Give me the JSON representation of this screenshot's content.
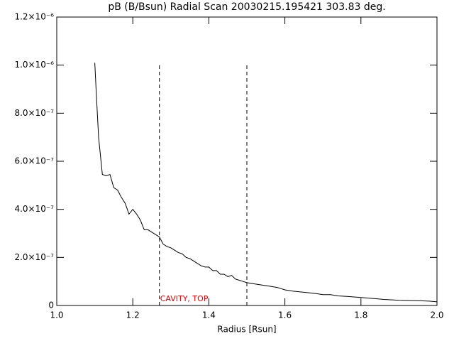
{
  "chart_data": {
    "type": "line",
    "title": "pB (B/Bsun) Radial Scan 20030215.195421 303.83 deg.",
    "xlabel": "Radius [Rsun]",
    "annotation": "CAVITY, TOP",
    "annotation_color": "#e00000",
    "markers": {
      "x": [
        1.27,
        1.5
      ],
      "top": 1e-06
    },
    "xlim": [
      1.0,
      2.0
    ],
    "ylim": [
      0,
      1.2e-06
    ],
    "xticks": [
      {
        "value": 1.0,
        "label": "1.0"
      },
      {
        "value": 1.2,
        "label": "1.2"
      },
      {
        "value": 1.4,
        "label": "1.4"
      },
      {
        "value": 1.6,
        "label": "1.6"
      },
      {
        "value": 1.8,
        "label": "1.8"
      },
      {
        "value": 2.0,
        "label": "2.0"
      }
    ],
    "yticks": [
      0,
      {
        "value": 2e-07,
        "label": "2.0×10⁻⁷"
      },
      {
        "value": 4e-07,
        "label": "4.0×10⁻⁷"
      },
      {
        "value": 6e-07,
        "label": "6.0×10⁻⁷"
      },
      {
        "value": 8e-07,
        "label": "8.0×10⁻⁷"
      },
      {
        "value": 1e-06,
        "label": "1.0×10⁻⁶"
      },
      {
        "value": 1.2e-06,
        "label": "1.2×10⁻⁶"
      }
    ],
    "series": [
      {
        "color": "#000000",
        "x": [
          1.1,
          1.105,
          1.11,
          1.12,
          1.13,
          1.14,
          1.15,
          1.16,
          1.17,
          1.18,
          1.19,
          1.2,
          1.21,
          1.22,
          1.23,
          1.24,
          1.25,
          1.26,
          1.27,
          1.28,
          1.29,
          1.3,
          1.31,
          1.32,
          1.33,
          1.34,
          1.35,
          1.36,
          1.37,
          1.38,
          1.39,
          1.4,
          1.41,
          1.42,
          1.43,
          1.44,
          1.45,
          1.46,
          1.47,
          1.48,
          1.49,
          1.5,
          1.52,
          1.54,
          1.56,
          1.58,
          1.59,
          1.6,
          1.62,
          1.65,
          1.68,
          1.7,
          1.72,
          1.74,
          1.76,
          1.8,
          1.84,
          1.86,
          1.9,
          1.95,
          1.98,
          2.0
        ],
        "values": [
          1.01e-06,
          8.5e-07,
          7e-07,
          5.45e-07,
          5.4e-07,
          5.45e-07,
          4.9e-07,
          4.8e-07,
          4.5e-07,
          4.25e-07,
          3.8e-07,
          4e-07,
          3.8e-07,
          3.55e-07,
          3.15e-07,
          3.15e-07,
          3.05e-07,
          2.95e-07,
          2.85e-07,
          2.55e-07,
          2.45e-07,
          2.4e-07,
          2.3e-07,
          2.2e-07,
          2.15e-07,
          2e-07,
          1.95e-07,
          1.85e-07,
          1.75e-07,
          1.65e-07,
          1.6e-07,
          1.6e-07,
          1.45e-07,
          1.45e-07,
          1.3e-07,
          1.3e-07,
          1.2e-07,
          1.25e-07,
          1.1e-07,
          1.05e-07,
          1e-07,
          9.5e-08,
          9e-08,
          8.5e-08,
          8e-08,
          7.5e-08,
          7e-08,
          6.5e-08,
          6e-08,
          5.5e-08,
          5e-08,
          4.5e-08,
          4.5e-08,
          4e-08,
          3.8e-08,
          3.3e-08,
          2.8e-08,
          2.5e-08,
          2.2e-08,
          2e-08,
          1.8e-08,
          1.5e-08
        ]
      }
    ]
  }
}
